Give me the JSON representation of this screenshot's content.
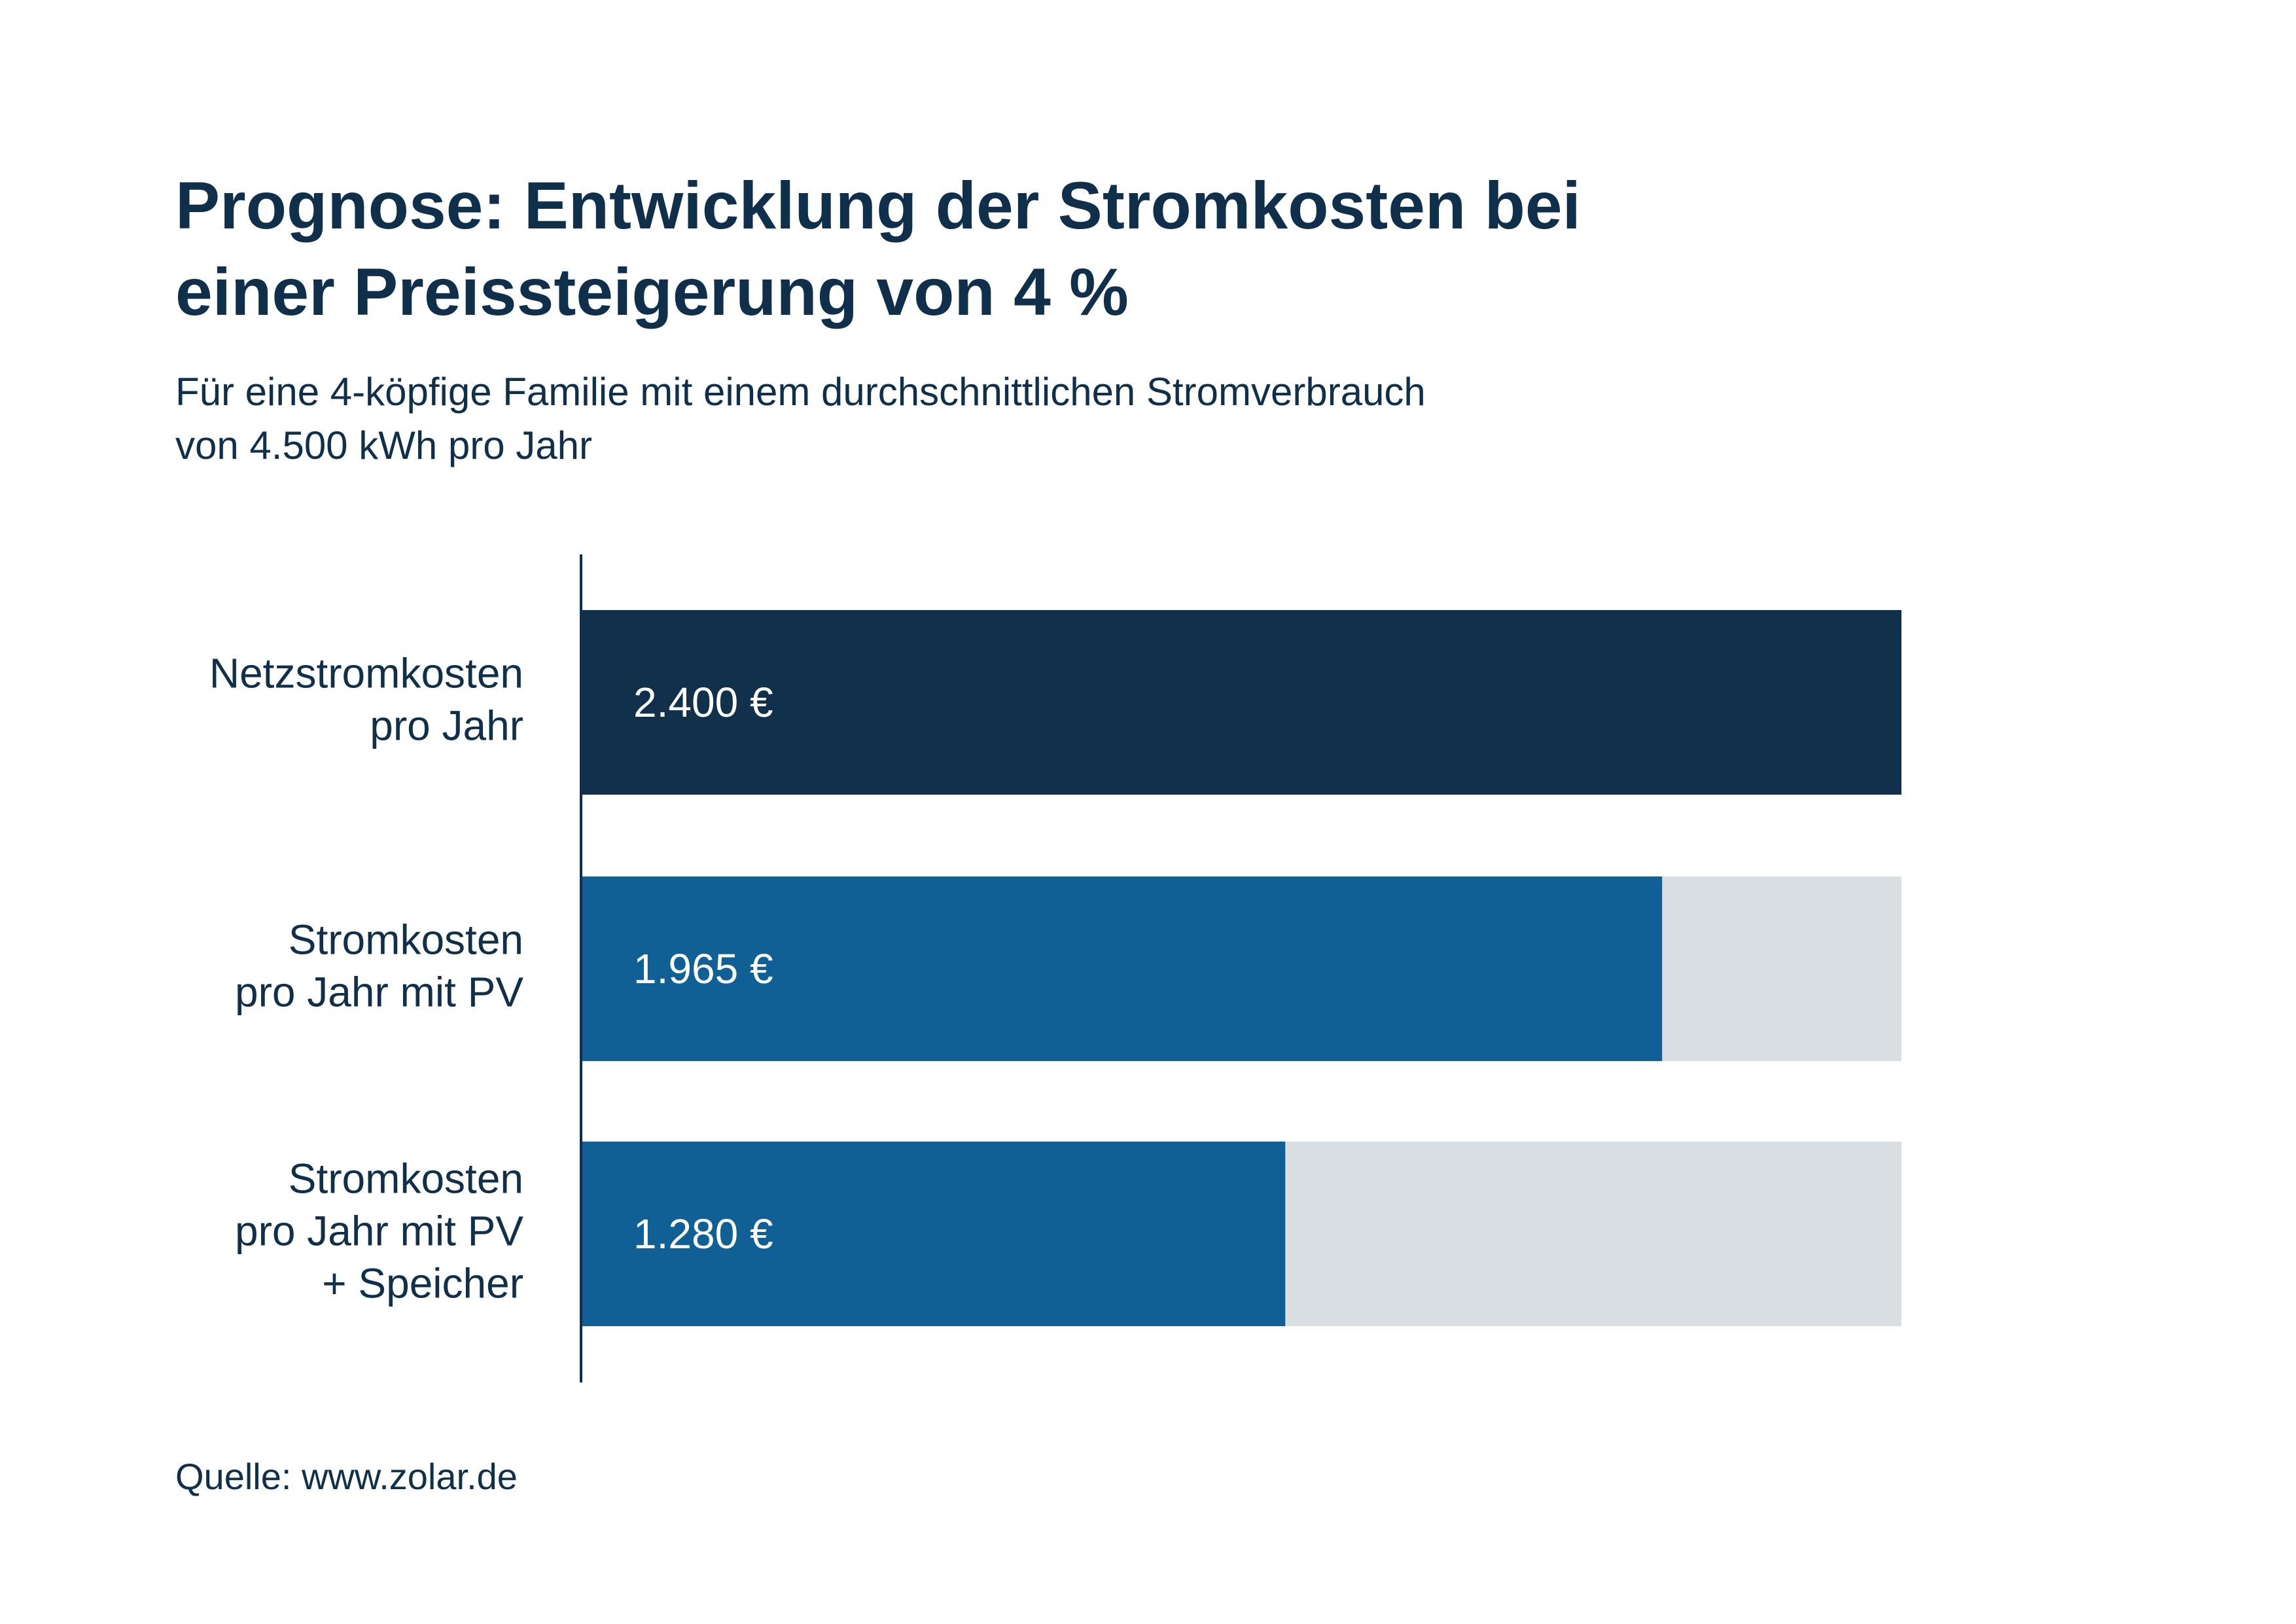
{
  "header": {
    "title_lines": [
      "Prognose: Entwicklung der Stromkosten bei",
      "einer Preissteigerung von 4 %"
    ],
    "subtitle_lines": [
      "Für eine 4-köpfige Familie mit einem durchschnittlichen Stromverbrauch",
      "von 4.500 kWh pro Jahr"
    ]
  },
  "chart_data": {
    "type": "bar",
    "orientation": "horizontal",
    "title": "Prognose: Entwicklung der Stromkosten bei einer Preissteigerung von 4 %",
    "subtitle": "Für eine 4-köpfige Familie mit einem durchschnittlichen Stromverbrauch von 4.500 kWh pro Jahr",
    "xlabel": "",
    "ylabel": "",
    "xlim": [
      0,
      2400
    ],
    "grid": false,
    "legend": "none",
    "unit": "€",
    "categories": [
      {
        "lines": [
          "Netzstromkosten",
          "pro Jahr"
        ]
      },
      {
        "lines": [
          "Stromkosten",
          "pro Jahr mit PV"
        ]
      },
      {
        "lines": [
          "Stromkosten",
          "pro Jahr mit PV",
          "+ Speicher"
        ]
      }
    ],
    "values": [
      2400,
      1965,
      1280
    ],
    "value_labels": [
      "2.400 €",
      "1.965 €",
      "1.280 €"
    ],
    "bar_colors": [
      "#10304b",
      "#106096",
      "#106096"
    ],
    "background_bar_color": "#d9dee2",
    "axis_color": "#0f2f4a"
  },
  "footer": {
    "source": "Quelle: www.zolar.de"
  }
}
